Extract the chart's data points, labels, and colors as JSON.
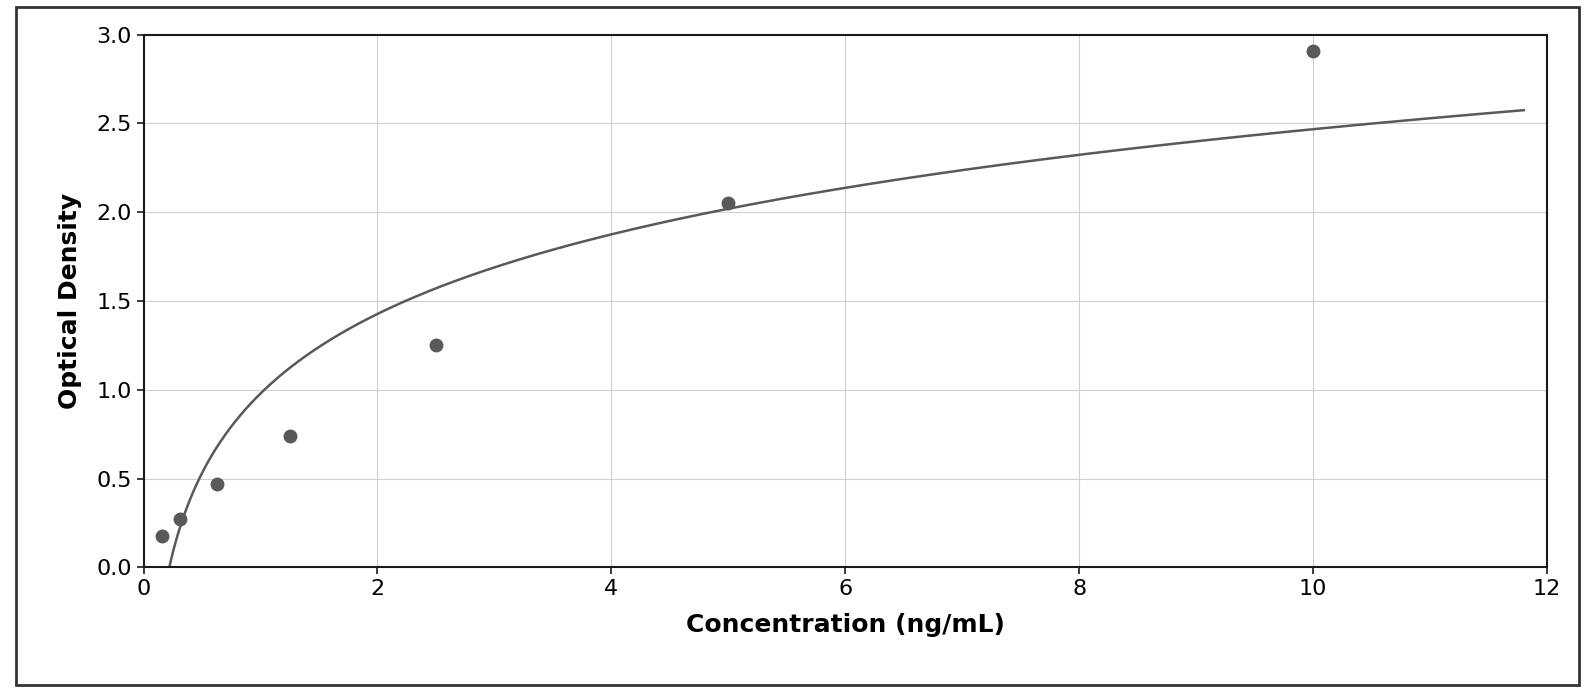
{
  "x_data": [
    0.156,
    0.313,
    0.625,
    1.25,
    2.5,
    5.0,
    10.0
  ],
  "y_data": [
    0.175,
    0.27,
    0.47,
    0.74,
    1.25,
    2.05,
    2.91
  ],
  "xlabel": "Concentration (ng/mL)",
  "ylabel": "Optical Density",
  "xlim": [
    0,
    12
  ],
  "ylim": [
    0,
    3
  ],
  "xticks": [
    0,
    2,
    4,
    6,
    8,
    10,
    12
  ],
  "yticks": [
    0,
    0.5,
    1.0,
    1.5,
    2.0,
    2.5,
    3.0
  ],
  "data_color": "#595959",
  "line_color": "#595959",
  "background_color": "#ffffff",
  "plot_bg_color": "#ffffff",
  "grid_color": "#d0d0d0",
  "border_color": "#1a1a1a",
  "outer_bg_color": "#ffffff",
  "outer_border_color": "#333333",
  "marker_size": 10,
  "line_width": 1.8,
  "xlabel_fontsize": 18,
  "ylabel_fontsize": 18,
  "tick_fontsize": 16,
  "xlabel_fontweight": "bold",
  "ylabel_fontweight": "bold"
}
